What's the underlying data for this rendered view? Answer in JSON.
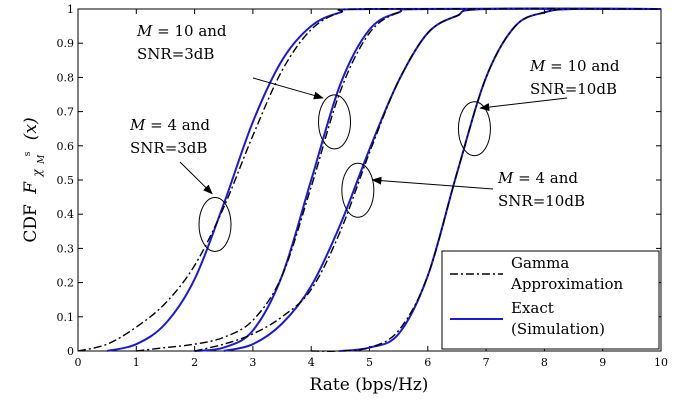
{
  "chart_data": {
    "type": "line",
    "title": "",
    "xlabel": "Rate (bps/Hz)",
    "ylabel_prefix": "CDF",
    "ylabel_symbol": "F",
    "ylabel_sub": "χ",
    "ylabel_sub2": "M",
    "ylabel_sup": "s",
    "ylabel_arg": "(x)",
    "xlim": [
      0,
      10
    ],
    "ylim": [
      0,
      1
    ],
    "xticks": [
      0,
      1,
      2,
      3,
      4,
      5,
      6,
      7,
      8,
      9,
      10
    ],
    "yticks": [
      0,
      0.1,
      0.2,
      0.3,
      0.4,
      0.5,
      0.6,
      0.7,
      0.8,
      0.9,
      1
    ],
    "xtick_labels": [
      "0",
      "1",
      "2",
      "3",
      "4",
      "5",
      "6",
      "7",
      "8",
      "9",
      "10"
    ],
    "ytick_labels": [
      "0",
      "0.1",
      "0.2",
      "0.3",
      "0.4",
      "0.5",
      "0.6",
      "0.7",
      "0.8",
      "0.9",
      "1"
    ],
    "grid": false,
    "legend_position": "bottom-right",
    "legend": [
      {
        "line1": "Gamma",
        "line2": "Approximation",
        "style": "dashdot",
        "color": "#000000"
      },
      {
        "line1": "Exact",
        "line2": "(Simulation)",
        "style": "solid",
        "color": "#1a1ad6"
      }
    ],
    "curves": [
      {
        "group": "M=4, SNR=3dB",
        "kind": "exact",
        "x": [
          0.5,
          1.0,
          1.5,
          2.0,
          2.5,
          3.0,
          3.5,
          4.0,
          4.5,
          5.0
        ],
        "y": [
          0.0,
          0.02,
          0.08,
          0.21,
          0.43,
          0.67,
          0.85,
          0.95,
          0.99,
          1.0
        ]
      },
      {
        "group": "M=4, SNR=3dB",
        "kind": "gamma",
        "x": [
          0.0,
          0.5,
          1.0,
          1.5,
          2.0,
          2.5,
          3.0,
          3.5,
          4.0,
          4.5,
          5.0
        ],
        "y": [
          0.0,
          0.02,
          0.07,
          0.14,
          0.25,
          0.42,
          0.63,
          0.82,
          0.94,
          0.99,
          1.0
        ]
      },
      {
        "group": "M=10, SNR=3dB",
        "kind": "exact",
        "x": [
          2.0,
          2.5,
          3.0,
          3.5,
          4.0,
          4.5,
          5.0,
          5.5,
          6.0
        ],
        "y": [
          0.0,
          0.01,
          0.06,
          0.22,
          0.5,
          0.78,
          0.94,
          0.99,
          1.0
        ]
      },
      {
        "group": "M=10, SNR=3dB",
        "kind": "gamma",
        "x": [
          1.0,
          1.5,
          2.0,
          2.5,
          3.0,
          3.5,
          4.0,
          4.5,
          5.0,
          5.5,
          6.0
        ],
        "y": [
          0.0,
          0.01,
          0.02,
          0.04,
          0.09,
          0.22,
          0.48,
          0.76,
          0.93,
          0.99,
          1.0
        ]
      },
      {
        "group": "M=4, SNR=10dB",
        "kind": "exact",
        "x": [
          2.5,
          3.0,
          3.5,
          4.0,
          4.5,
          5.0,
          5.5,
          6.0,
          6.5,
          7.0
        ],
        "y": [
          0.0,
          0.02,
          0.08,
          0.19,
          0.37,
          0.59,
          0.79,
          0.93,
          0.98,
          1.0
        ]
      },
      {
        "group": "M=4, SNR=10dB",
        "kind": "gamma",
        "x": [
          2.0,
          2.5,
          3.0,
          3.5,
          4.0,
          4.5,
          5.0,
          5.5,
          6.0,
          6.5,
          7.0
        ],
        "y": [
          0.0,
          0.02,
          0.05,
          0.1,
          0.18,
          0.35,
          0.58,
          0.79,
          0.93,
          0.98,
          1.0
        ]
      },
      {
        "group": "M=10, SNR=10dB",
        "kind": "exact",
        "x": [
          4.5,
          5.0,
          5.5,
          6.0,
          6.5,
          7.0,
          7.5,
          8.0,
          8.5
        ],
        "y": [
          0.0,
          0.01,
          0.05,
          0.22,
          0.52,
          0.8,
          0.95,
          0.99,
          1.0
        ]
      },
      {
        "group": "M=10, SNR=10dB",
        "kind": "gamma",
        "x": [
          4.0,
          4.5,
          5.0,
          5.5,
          6.0,
          6.5,
          7.0,
          7.5,
          8.0,
          8.5
        ],
        "y": [
          0.0,
          0.0,
          0.01,
          0.06,
          0.22,
          0.52,
          0.8,
          0.95,
          0.99,
          1.0
        ]
      }
    ],
    "annotations": [
      {
        "id": "m10-snr3",
        "line1": "M = 10 and",
        "line2": "SNR=3dB",
        "ellipse": {
          "x": 4.4,
          "y": 0.67
        },
        "arrow_to": {
          "x": 4.2,
          "y": 0.74
        }
      },
      {
        "id": "m4-snr3",
        "line1": "M = 4 and",
        "line2": "SNR=3dB",
        "ellipse": {
          "x": 2.35,
          "y": 0.37
        },
        "arrow_to": {
          "x": 2.3,
          "y": 0.46
        }
      },
      {
        "id": "m10-snr10",
        "line1": "M = 10 and",
        "line2": "SNR=10dB",
        "ellipse": {
          "x": 6.8,
          "y": 0.65
        },
        "arrow_to": {
          "x": 6.9,
          "y": 0.71
        }
      },
      {
        "id": "m4-snr10",
        "line1": "M = 4 and",
        "line2": "SNR=10dB",
        "ellipse": {
          "x": 4.8,
          "y": 0.47
        },
        "arrow_to": {
          "x": 5.05,
          "y": 0.5
        }
      }
    ]
  }
}
